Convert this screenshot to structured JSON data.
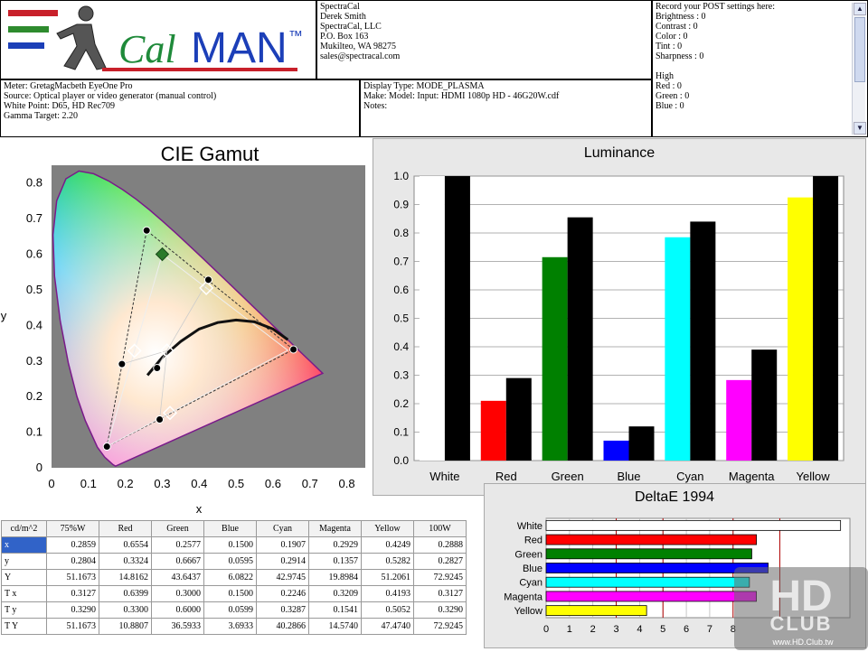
{
  "logo": {
    "text_a": "Cal",
    "text_b": "MAN",
    "tm": "™"
  },
  "contact": {
    "lines": [
      "SpectraCal",
      "Derek Smith",
      "SpectraCal, LLC",
      "P.O. Box 163",
      "Mukilteo, WA 98275",
      "sales@spectracal.com"
    ]
  },
  "post_settings": {
    "title": "Record your POST settings here:",
    "lines": [
      "",
      "Brightness  : 0",
      "Contrast    : 0",
      "Color        : 0",
      "Tint          : 0",
      "Sharpness : 0",
      "",
      "High",
      "Red     : 0",
      "Green  : 0",
      "Blue    : 0"
    ]
  },
  "meter_info": {
    "lines": [
      "Meter: GretagMacbeth EyeOne Pro",
      "Source: Optical player or video generator (manual control)",
      "White Point: D65, HD Rec709",
      "Gamma Target: 2.20"
    ]
  },
  "display_info": {
    "lines": [
      "Display Type: MODE_PLASMA",
      "Make: Model: Input: HDMI 1080p HD     -     46G20W.cdf",
      "Notes:"
    ]
  },
  "colors": {
    "red": "#ff0000",
    "green": "#008000",
    "blue": "#0000ff",
    "cyan": "#00ffff",
    "magenta": "#ff00ff",
    "yellow": "#ffff00",
    "white": "#ffffff",
    "black": "#000000"
  },
  "chart_data": [
    {
      "type": "scatter",
      "title": "CIE Gamut",
      "xlabel": "x",
      "ylabel": "y",
      "xlim": [
        0,
        0.85
      ],
      "ylim": [
        0,
        0.85
      ],
      "xticks": [
        "0",
        "0.1",
        "0.2",
        "0.3",
        "0.4",
        "0.5",
        "0.6",
        "0.7",
        "0.8"
      ],
      "yticks": [
        "0",
        "0.1",
        "0.2",
        "0.3",
        "0.4",
        "0.5",
        "0.6",
        "0.7",
        "0.8"
      ],
      "series": [
        {
          "values": [
            [
              0.6554,
              0.3324
            ],
            [
              0.2577,
              0.6667
            ],
            [
              0.15,
              0.0595
            ]
          ]
        },
        {
          "values": [
            [
              0.1907,
              0.2914
            ],
            [
              0.2929,
              0.1357
            ],
            [
              0.4249,
              0.5282
            ],
            [
              0.2859,
              0.2804
            ]
          ]
        },
        {
          "values": [
            [
              0.3,
              0.6
            ]
          ]
        },
        {
          "values": [
            [
              0.2246,
              0.3287
            ],
            [
              0.3209,
              0.1541
            ],
            [
              0.4193,
              0.5052
            ],
            [
              0.3127,
              0.329
            ]
          ]
        }
      ]
    },
    {
      "type": "bar",
      "title": "Luminance",
      "categories": [
        "White",
        "Red",
        "Green",
        "Blue",
        "Cyan",
        "Magenta",
        "Yellow"
      ],
      "bar_colors": [
        "#ffffff",
        "#ff0000",
        "#008000",
        "#0000ff",
        "#00ffff",
        "#ff00ff",
        "#ffff00"
      ],
      "series": [
        {
          "values": [
            1.0,
            0.21,
            0.715,
            0.07,
            0.785,
            0.283,
            0.925
          ]
        },
        {
          "values": [
            1.0,
            0.29,
            0.855,
            0.12,
            0.84,
            0.39,
            1.0
          ]
        }
      ],
      "ylim": [
        0,
        1.0
      ],
      "yticks": [
        "0.0",
        "0.1",
        "0.2",
        "0.3",
        "0.4",
        "0.5",
        "0.6",
        "0.7",
        "0.8",
        "0.9",
        "1.0"
      ]
    },
    {
      "type": "bar",
      "title": "DeltaE 1994",
      "orientation": "horizontal",
      "categories": [
        "White",
        "Red",
        "Green",
        "Blue",
        "Cyan",
        "Magenta",
        "Yellow"
      ],
      "bar_colors": [
        "#ffffff",
        "#ff0000",
        "#008000",
        "#0000ff",
        "#00ffff",
        "#ff00ff",
        "#ffff00"
      ],
      "values": [
        12.6,
        9.0,
        8.8,
        9.5,
        8.7,
        9.0,
        4.3
      ],
      "xlim": [
        0,
        13
      ],
      "xticks": [
        "0",
        "1",
        "2",
        "3",
        "4",
        "5",
        "6",
        "7",
        "8"
      ],
      "reference_lines": [
        3,
        5,
        8,
        10
      ]
    }
  ],
  "table": {
    "headers": [
      "cd/m^2",
      "75%W",
      "Red",
      "Green",
      "Blue",
      "Cyan",
      "Magenta",
      "Yellow",
      "100W"
    ],
    "rows": [
      [
        "x",
        "0.2859",
        "0.6554",
        "0.2577",
        "0.1500",
        "0.1907",
        "0.2929",
        "0.4249",
        "0.2888"
      ],
      [
        "y",
        "0.2804",
        "0.3324",
        "0.6667",
        "0.0595",
        "0.2914",
        "0.1357",
        "0.5282",
        "0.2827"
      ],
      [
        "Y",
        "51.1673",
        "14.8162",
        "43.6437",
        "6.0822",
        "42.9745",
        "19.8984",
        "51.2061",
        "72.9245"
      ],
      [
        "T x",
        "0.3127",
        "0.6399",
        "0.3000",
        "0.1500",
        "0.2246",
        "0.3209",
        "0.4193",
        "0.3127"
      ],
      [
        "T y",
        "0.3290",
        "0.3300",
        "0.6000",
        "0.0599",
        "0.3287",
        "0.1541",
        "0.5052",
        "0.3290"
      ],
      [
        "T Y",
        "51.1673",
        "10.8807",
        "36.5933",
        "3.6933",
        "40.2866",
        "14.5740",
        "47.4740",
        "72.9245"
      ]
    ]
  },
  "watermark": {
    "big": "HD",
    "club": "CLUB",
    "url": "www.HD.Club.tw"
  }
}
